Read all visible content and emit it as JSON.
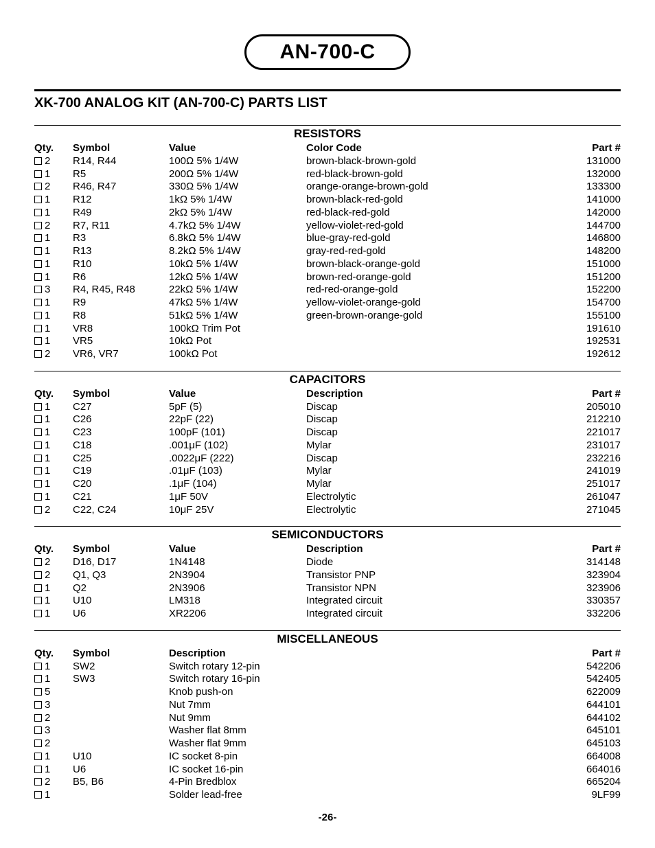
{
  "title": "AN-700-C",
  "subtitle": "XK-700 ANALOG KIT (AN-700-C) PARTS LIST",
  "page_number": "-26-",
  "col_widths": {
    "qty": 56,
    "symbol": 140,
    "value": 200,
    "desc_flex": 1,
    "part": 80
  },
  "typography": {
    "body_fontsize": 15,
    "title_fontsize": 30,
    "heading_fontsize": 17,
    "subtitle_fontsize": 20,
    "line_height": 1.25,
    "font_family": "Arial, Helvetica, sans-serif"
  },
  "colors": {
    "text": "#000000",
    "background": "#ffffff",
    "rule": "#000000"
  },
  "sections": [
    {
      "heading": "RESISTORS",
      "columns": {
        "qty": "Qty.",
        "symbol": "Symbol",
        "value": "Value",
        "desc": "Color Code",
        "part": "Part #"
      },
      "rows": [
        {
          "qty": "2",
          "symbol": "R14, R44",
          "value": "100Ω 5% 1/4W",
          "desc": "brown-black-brown-gold",
          "part": "131000"
        },
        {
          "qty": "1",
          "symbol": "R5",
          "value": "200Ω 5% 1/4W",
          "desc": "red-black-brown-gold",
          "part": "132000"
        },
        {
          "qty": "2",
          "symbol": "R46, R47",
          "value": "330Ω 5% 1/4W",
          "desc": "orange-orange-brown-gold",
          "part": "133300"
        },
        {
          "qty": "1",
          "symbol": "R12",
          "value": "1kΩ 5% 1/4W",
          "desc": "brown-black-red-gold",
          "part": "141000"
        },
        {
          "qty": "1",
          "symbol": "R49",
          "value": "2kΩ 5% 1/4W",
          "desc": "red-black-red-gold",
          "part": "142000"
        },
        {
          "qty": "2",
          "symbol": "R7, R11",
          "value": "4.7kΩ 5% 1/4W",
          "desc": "yellow-violet-red-gold",
          "part": "144700"
        },
        {
          "qty": "1",
          "symbol": "R3",
          "value": "6.8kΩ 5% 1/4W",
          "desc": "blue-gray-red-gold",
          "part": "146800"
        },
        {
          "qty": "1",
          "symbol": "R13",
          "value": "8.2kΩ 5% 1/4W",
          "desc": "gray-red-red-gold",
          "part": "148200"
        },
        {
          "qty": "1",
          "symbol": "R10",
          "value": "10kΩ 5% 1/4W",
          "desc": "brown-black-orange-gold",
          "part": "151000"
        },
        {
          "qty": "1",
          "symbol": "R6",
          "value": "12kΩ 5% 1/4W",
          "desc": "brown-red-orange-gold",
          "part": "151200"
        },
        {
          "qty": "3",
          "symbol": "R4, R45, R48",
          "value": "22kΩ 5% 1/4W",
          "desc": "red-red-orange-gold",
          "part": "152200"
        },
        {
          "qty": "1",
          "symbol": "R9",
          "value": "47kΩ 5% 1/4W",
          "desc": "yellow-violet-orange-gold",
          "part": "154700"
        },
        {
          "qty": "1",
          "symbol": "R8",
          "value": "51kΩ 5% 1/4W",
          "desc": "green-brown-orange-gold",
          "part": "155100"
        },
        {
          "qty": "1",
          "symbol": "VR8",
          "value": "100kΩ Trim Pot",
          "desc": "",
          "part": "191610"
        },
        {
          "qty": "1",
          "symbol": "VR5",
          "value": "10kΩ Pot",
          "desc": "",
          "part": "192531"
        },
        {
          "qty": "2",
          "symbol": "VR6, VR7",
          "value": "100kΩ Pot",
          "desc": "",
          "part": "192612"
        }
      ]
    },
    {
      "heading": "CAPACITORS",
      "columns": {
        "qty": "Qty.",
        "symbol": "Symbol",
        "value": "Value",
        "desc": "Description",
        "part": "Part #"
      },
      "rows": [
        {
          "qty": "1",
          "symbol": "C27",
          "value": "5pF (5)",
          "desc": "Discap",
          "part": "205010"
        },
        {
          "qty": "1",
          "symbol": "C26",
          "value": "22pF (22)",
          "desc": "Discap",
          "part": "212210"
        },
        {
          "qty": "1",
          "symbol": "C23",
          "value": "100pF (101)",
          "desc": "Discap",
          "part": "221017"
        },
        {
          "qty": "1",
          "symbol": "C18",
          "value": ".001μF (102)",
          "desc": "Mylar",
          "part": "231017"
        },
        {
          "qty": "1",
          "symbol": "C25",
          "value": ".0022μF (222)",
          "desc": "Discap",
          "part": "232216"
        },
        {
          "qty": "1",
          "symbol": "C19",
          "value": ".01μF (103)",
          "desc": "Mylar",
          "part": "241019"
        },
        {
          "qty": "1",
          "symbol": "C20",
          "value": ".1μF (104)",
          "desc": "Mylar",
          "part": "251017"
        },
        {
          "qty": "1",
          "symbol": "C21",
          "value": "1μF 50V",
          "desc": "Electrolytic",
          "part": "261047"
        },
        {
          "qty": "2",
          "symbol": "C22, C24",
          "value": "10μF 25V",
          "desc": "Electrolytic",
          "part": "271045"
        }
      ]
    },
    {
      "heading": "SEMICONDUCTORS",
      "columns": {
        "qty": "Qty.",
        "symbol": "Symbol",
        "value": "Value",
        "desc": "Description",
        "part": "Part #"
      },
      "rows": [
        {
          "qty": "2",
          "symbol": "D16, D17",
          "value": "1N4148",
          "desc": "Diode",
          "part": "314148"
        },
        {
          "qty": "2",
          "symbol": "Q1, Q3",
          "value": "2N3904",
          "desc": "Transistor PNP",
          "part": "323904"
        },
        {
          "qty": "1",
          "symbol": "Q2",
          "value": "2N3906",
          "desc": "Transistor NPN",
          "part": "323906"
        },
        {
          "qty": "1",
          "symbol": "U10",
          "value": "LM318",
          "desc": "Integrated circuit",
          "part": "330357"
        },
        {
          "qty": "1",
          "symbol": "U6",
          "value": "XR2206",
          "desc": "Integrated circuit",
          "part": "332206"
        }
      ]
    },
    {
      "heading": "MISCELLANEOUS",
      "columns": {
        "qty": "Qty.",
        "symbol": "Symbol",
        "value": "Description",
        "desc": "",
        "part": "Part #"
      },
      "rows": [
        {
          "qty": "1",
          "symbol": "SW2",
          "value": "Switch rotary 12-pin",
          "desc": "",
          "part": "542206"
        },
        {
          "qty": "1",
          "symbol": "SW3",
          "value": "Switch rotary 16-pin",
          "desc": "",
          "part": "542405"
        },
        {
          "qty": "5",
          "symbol": "",
          "value": "Knob push-on",
          "desc": "",
          "part": "622009"
        },
        {
          "qty": "3",
          "symbol": "",
          "value": "Nut 7mm",
          "desc": "",
          "part": "644101"
        },
        {
          "qty": "2",
          "symbol": "",
          "value": "Nut 9mm",
          "desc": "",
          "part": "644102"
        },
        {
          "qty": "3",
          "symbol": "",
          "value": "Washer flat 8mm",
          "desc": "",
          "part": "645101"
        },
        {
          "qty": "2",
          "symbol": "",
          "value": "Washer flat 9mm",
          "desc": "",
          "part": "645103"
        },
        {
          "qty": "1",
          "symbol": "U10",
          "value": "IC socket 8-pin",
          "desc": "",
          "part": "664008"
        },
        {
          "qty": "1",
          "symbol": "U6",
          "value": "IC socket 16-pin",
          "desc": "",
          "part": "664016"
        },
        {
          "qty": "2",
          "symbol": "B5, B6",
          "value": "4-Pin Bredblox",
          "desc": "",
          "part": "665204"
        },
        {
          "qty": "1",
          "symbol": "",
          "value": "Solder lead-free",
          "desc": "",
          "part": "9LF99"
        }
      ]
    }
  ]
}
